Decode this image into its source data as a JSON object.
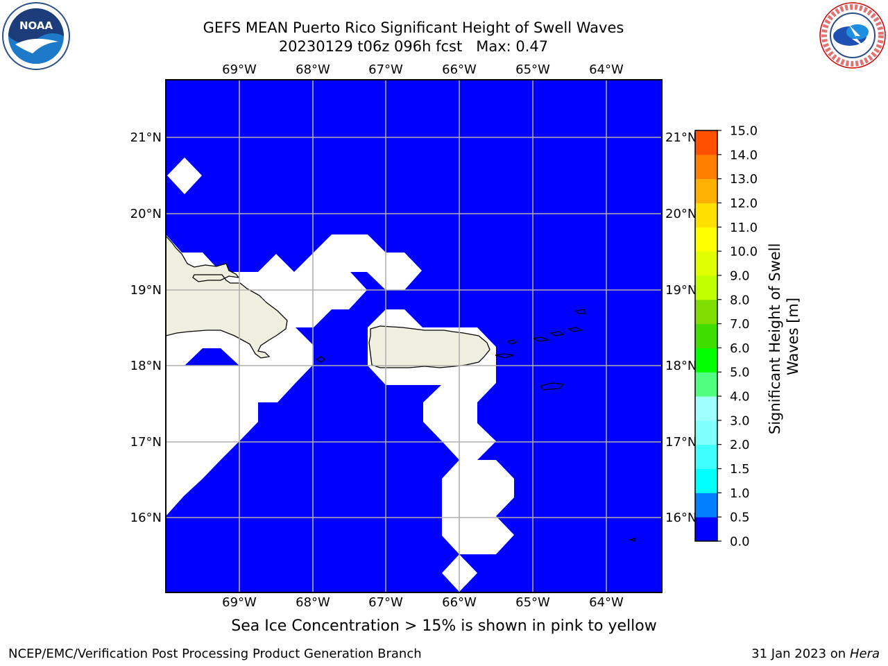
{
  "title": {
    "line1": "GEFS MEAN Puerto Rico Significant Height of Swell Waves",
    "line2": "20230129 t06z 096h fcst   Max: 0.47"
  },
  "map": {
    "lon_labels": [
      "69°W",
      "68°W",
      "67°W",
      "66°W",
      "65°W",
      "64°W"
    ],
    "lat_labels": [
      "21°N",
      "20°N",
      "19°N",
      "18°N",
      "17°N",
      "16°N"
    ],
    "ocean_color": "#0000ff",
    "land_color": "#efefdf",
    "nodata_color": "#ffffff"
  },
  "colorbar": {
    "label": "Significant Height of Swell Waves [m]",
    "ticks": [
      "15.0",
      "14.0",
      "13.0",
      "12.0",
      "11.0",
      "10.0",
      "9.0",
      "8.0",
      "7.0",
      "6.0",
      "5.0",
      "4.0",
      "3.0",
      "2.0",
      "1.5",
      "1.0",
      "0.5",
      "0.0"
    ],
    "colors": [
      "#0000ff",
      "#0080ff",
      "#00ffff",
      "#40ffff",
      "#80ffff",
      "#a0ffff",
      "#50ff80",
      "#00ff00",
      "#40dd00",
      "#80dd00",
      "#c0ff00",
      "#e0ff00",
      "#ffff00",
      "#ffe000",
      "#ffb000",
      "#ff8000",
      "#ff5000",
      "#ff2000",
      "#ff0000"
    ]
  },
  "caption": "Sea Ice Concentration > 15% is shown in pink to yellow",
  "footer": {
    "left": "NCEP/EMC/Verification Post Processing Product Generation Branch",
    "date": "31 Jan 2023 on ",
    "machine": "Hera"
  },
  "logos": {
    "noaa_text": "NOAA",
    "nws_text": "NATIONAL WEATHER SERVICE"
  }
}
